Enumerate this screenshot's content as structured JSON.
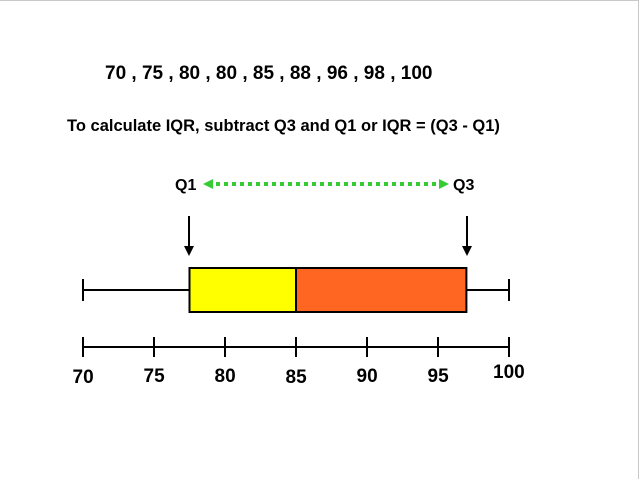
{
  "data_set": "70 , 75 , 80 , 80 , 85 , 88 , 96 , 98 , 100",
  "instruction": "To calculate IQR, subtract Q3 and Q1 or IQR = (Q3 - Q1)",
  "labels": {
    "q1": "Q1",
    "q3": "Q3"
  },
  "colors": {
    "lower_box": "#ffff00",
    "upper_box": "#ff6622",
    "arrow": "#33cc33",
    "ink": "#000000"
  },
  "boxplot": {
    "min": 70,
    "q1": 77.5,
    "median": 85,
    "q3": 97,
    "max": 100
  },
  "axis": {
    "ticks": [
      70,
      75,
      80,
      85,
      90,
      95,
      100
    ],
    "tick_labels": [
      "70",
      "75",
      "80",
      "85",
      "90",
      "95",
      "100"
    ]
  }
}
